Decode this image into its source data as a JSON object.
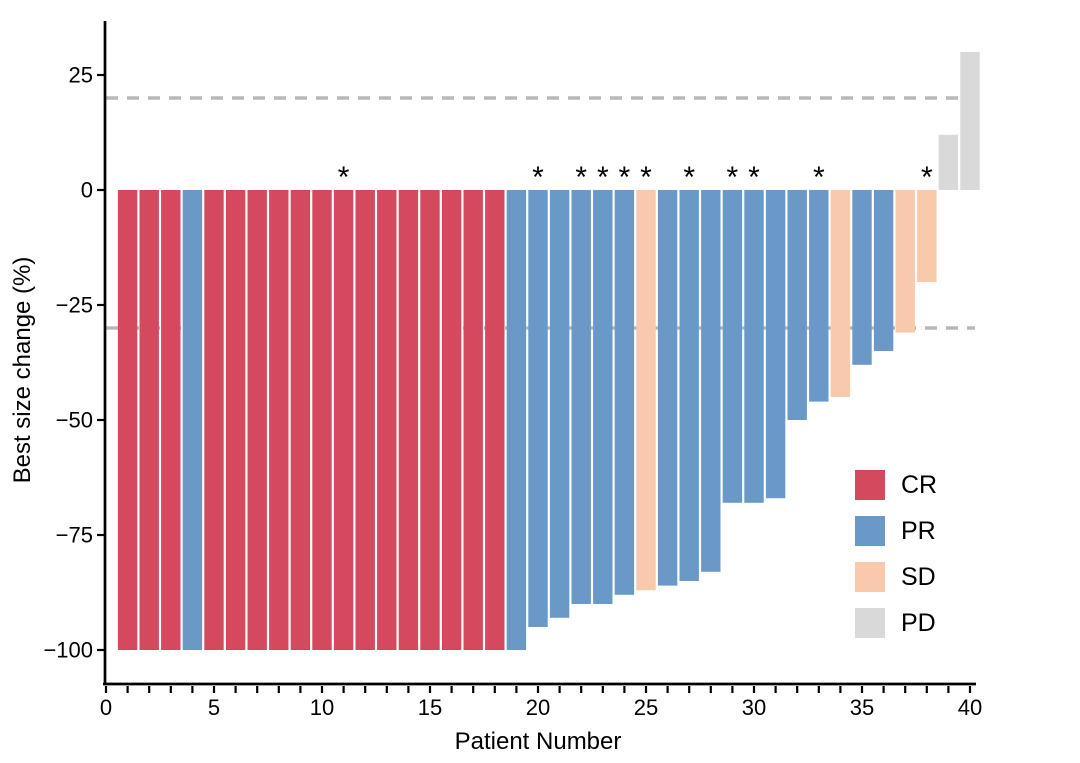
{
  "chart_data": {
    "type": "bar",
    "variant": "waterfall",
    "title": "",
    "xlabel": "Patient Number",
    "ylabel": "Best size change (%)",
    "x_tick_labels": [
      "0",
      "5",
      "10",
      "15",
      "20",
      "25",
      "30",
      "35",
      "40"
    ],
    "x_tick_values": [
      0,
      5,
      10,
      15,
      20,
      25,
      30,
      35,
      40
    ],
    "x_minor_tick_step": 1,
    "x_range": [
      0,
      41
    ],
    "y_tick_values": [
      25,
      0,
      -25,
      -50,
      -75,
      -100
    ],
    "y_tick_labels": [
      "25",
      "0",
      "−25",
      "−50",
      "−75",
      "−100"
    ],
    "ylim": [
      -111,
      37
    ],
    "grid": false,
    "background_color": "#FFFFFF",
    "axis_color": "#000000",
    "annotation_symbol": "*",
    "reference_lines": [
      {
        "y": 20,
        "style": "dashed",
        "color": "#B8B8B8"
      },
      {
        "y": -30,
        "style": "dashed",
        "color": "#B8B8B8"
      }
    ],
    "legend": {
      "position": "inside-bottom-right",
      "entries": [
        {
          "label": "CR",
          "color": "#D4495E"
        },
        {
          "label": "PR",
          "color": "#6A99C8"
        },
        {
          "label": "SD",
          "color": "#F8C9AB"
        },
        {
          "label": "PD",
          "color": "#D9D9D9"
        }
      ]
    },
    "patients": [
      {
        "n": 1,
        "value": -100,
        "response": "CR",
        "star": false
      },
      {
        "n": 2,
        "value": -100,
        "response": "CR",
        "star": false
      },
      {
        "n": 3,
        "value": -100,
        "response": "CR",
        "star": false
      },
      {
        "n": 4,
        "value": -100,
        "response": "PR",
        "star": false
      },
      {
        "n": 5,
        "value": -100,
        "response": "CR",
        "star": false
      },
      {
        "n": 6,
        "value": -100,
        "response": "CR",
        "star": false
      },
      {
        "n": 7,
        "value": -100,
        "response": "CR",
        "star": false
      },
      {
        "n": 8,
        "value": -100,
        "response": "CR",
        "star": false
      },
      {
        "n": 9,
        "value": -100,
        "response": "CR",
        "star": false
      },
      {
        "n": 10,
        "value": -100,
        "response": "CR",
        "star": false
      },
      {
        "n": 11,
        "value": -100,
        "response": "CR",
        "star": true
      },
      {
        "n": 12,
        "value": -100,
        "response": "CR",
        "star": false
      },
      {
        "n": 13,
        "value": -100,
        "response": "CR",
        "star": false
      },
      {
        "n": 14,
        "value": -100,
        "response": "CR",
        "star": false
      },
      {
        "n": 15,
        "value": -100,
        "response": "CR",
        "star": false
      },
      {
        "n": 16,
        "value": -100,
        "response": "CR",
        "star": false
      },
      {
        "n": 17,
        "value": -100,
        "response": "CR",
        "star": false
      },
      {
        "n": 18,
        "value": -100,
        "response": "CR",
        "star": false
      },
      {
        "n": 19,
        "value": -100,
        "response": "PR",
        "star": false
      },
      {
        "n": 20,
        "value": -95,
        "response": "PR",
        "star": true
      },
      {
        "n": 21,
        "value": -93,
        "response": "PR",
        "star": false
      },
      {
        "n": 22,
        "value": -90,
        "response": "PR",
        "star": true
      },
      {
        "n": 23,
        "value": -90,
        "response": "PR",
        "star": true
      },
      {
        "n": 24,
        "value": -88,
        "response": "PR",
        "star": true
      },
      {
        "n": 25,
        "value": -87,
        "response": "SD",
        "star": true
      },
      {
        "n": 26,
        "value": -86,
        "response": "PR",
        "star": false
      },
      {
        "n": 27,
        "value": -85,
        "response": "PR",
        "star": true
      },
      {
        "n": 28,
        "value": -83,
        "response": "PR",
        "star": false
      },
      {
        "n": 29,
        "value": -68,
        "response": "PR",
        "star": true
      },
      {
        "n": 30,
        "value": -68,
        "response": "PR",
        "star": true
      },
      {
        "n": 31,
        "value": -67,
        "response": "PR",
        "star": false
      },
      {
        "n": 32,
        "value": -50,
        "response": "PR",
        "star": false
      },
      {
        "n": 33,
        "value": -46,
        "response": "PR",
        "star": true
      },
      {
        "n": 34,
        "value": -45,
        "response": "SD",
        "star": false
      },
      {
        "n": 35,
        "value": -38,
        "response": "PR",
        "star": false
      },
      {
        "n": 36,
        "value": -35,
        "response": "PR",
        "star": false
      },
      {
        "n": 37,
        "value": -31,
        "response": "SD",
        "star": false
      },
      {
        "n": 38,
        "value": -20,
        "response": "SD",
        "star": true
      },
      {
        "n": 39,
        "value": 12,
        "response": "PD",
        "star": false
      },
      {
        "n": 40,
        "value": 30,
        "response": "PD",
        "star": false
      }
    ]
  }
}
